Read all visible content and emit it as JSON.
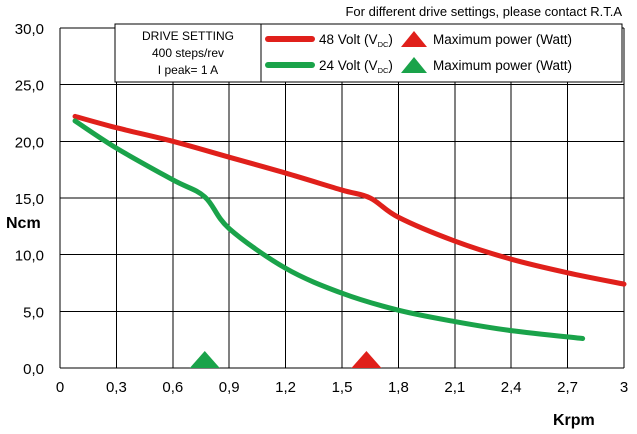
{
  "chart_data": {
    "type": "line",
    "note": "For different drive settings, please contact R.T.A",
    "drive_setting": {
      "title": "DRIVE SETTING",
      "steps": "400 steps/rev",
      "current": "I peak= 1 A"
    },
    "xlabel": "Krpm",
    "ylabel": "Ncm",
    "xlim": [
      0,
      3
    ],
    "ylim": [
      0,
      30
    ],
    "x_ticks": [
      0,
      0.3,
      0.6,
      0.9,
      1.2,
      1.5,
      1.8,
      2.1,
      2.4,
      2.7,
      3
    ],
    "x_tick_labels": [
      "0",
      "0,3",
      "0,6",
      "0,9",
      "1,2",
      "1,5",
      "1,8",
      "2,1",
      "2,4",
      "2,7",
      "3"
    ],
    "y_ticks": [
      0,
      5,
      10,
      15,
      20,
      25,
      30
    ],
    "y_tick_labels": [
      "0,0",
      "5,0",
      "10,0",
      "15,0",
      "20,0",
      "25,0",
      "30,0"
    ],
    "grid": true,
    "legend_position": "top-right",
    "series": [
      {
        "name": "48 Volt",
        "name_sub": "DC",
        "suffix": ")",
        "color": "#e0201b",
        "x": [
          0.08,
          0.3,
          0.6,
          0.9,
          1.2,
          1.5,
          1.65,
          1.8,
          2.1,
          2.4,
          2.7,
          3.0
        ],
        "y": [
          22.2,
          21.2,
          20.0,
          18.6,
          17.2,
          15.7,
          15.0,
          13.3,
          11.2,
          9.6,
          8.4,
          7.4
        ],
        "max_power_marker": {
          "x": 1.63,
          "label": "Maximum power (Watt)"
        }
      },
      {
        "name": "24 Volt",
        "name_sub": "DC",
        "suffix": ")",
        "color": "#1aa34a",
        "x": [
          0.08,
          0.3,
          0.6,
          0.77,
          0.9,
          1.2,
          1.5,
          1.8,
          2.1,
          2.4,
          2.78
        ],
        "y": [
          21.8,
          19.4,
          16.6,
          15.1,
          12.3,
          8.8,
          6.6,
          5.1,
          4.1,
          3.3,
          2.6
        ],
        "max_power_marker": {
          "x": 0.77,
          "label": "Maximum power (Watt)"
        }
      }
    ]
  }
}
